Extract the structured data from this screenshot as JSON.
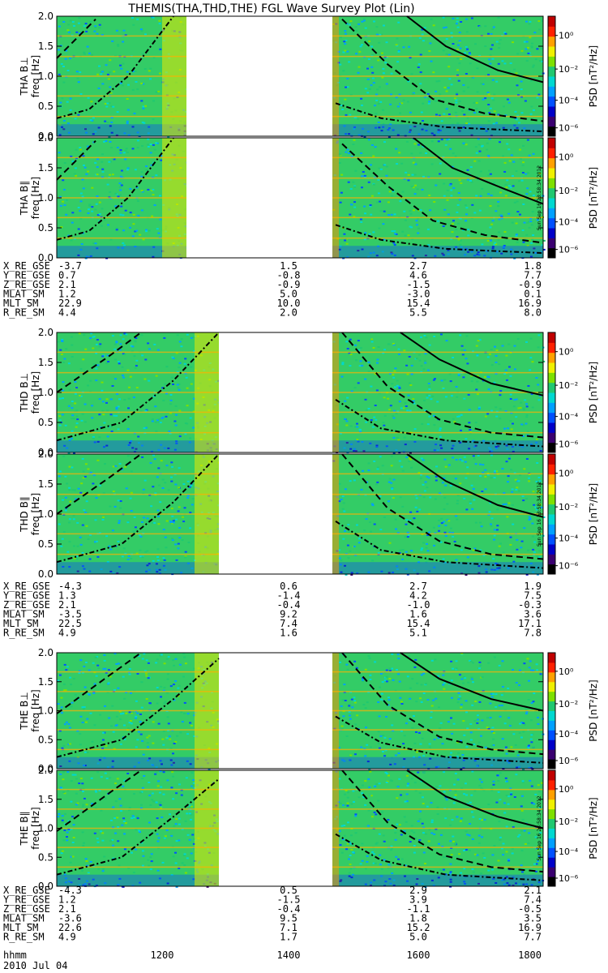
{
  "title": "THEMIS(THA,THD,THE) FGL Wave Survey Plot (Lin)",
  "date_label": "2010 Jul 04",
  "time_row_label": "hhmm",
  "time_ticks": [
    "1200",
    "1400",
    "1600",
    "1800"
  ],
  "stamp": "Sun Sep 16 23:58:34 2012",
  "colorbar": {
    "ticks": [
      "10⁰",
      "10⁻²",
      "10⁻⁴",
      "10⁻⁶"
    ],
    "label": "PSD [nT²/Hz]"
  },
  "yticks": [
    "0.0",
    "0.5",
    "1.0",
    "1.5",
    "2.0"
  ],
  "ylabel_freq": "freq [Hz]",
  "colors": {
    "background_field": "#33cc66",
    "colormap": [
      "#000000",
      "#3a0070",
      "#0000c8",
      "#0050ff",
      "#00a0ff",
      "#00d8d0",
      "#20c870",
      "#7ee000",
      "#f0f000",
      "#ffa000",
      "#ff2000",
      "#c00000"
    ]
  },
  "chart_data": [
    {
      "type": "heatmap",
      "panel": "THA B⊥",
      "probe_label": "THA B⊥",
      "ylabel": "freq [Hz]",
      "ylim": [
        0,
        2.0
      ],
      "xlim": [
        "10:30",
        "18:00"
      ],
      "colorscale": "log PSD 1e-6 to 1e1 nT²/Hz",
      "data_gap": [
        "12:30",
        "14:45"
      ],
      "curves": {
        "solid": [
          [
            15.9,
            2.0
          ],
          [
            16.5,
            1.5
          ],
          [
            17.3,
            1.1
          ],
          [
            18.0,
            0.9
          ]
        ],
        "dashed": [
          [
            10.5,
            1.3
          ],
          [
            11.1,
            1.95
          ],
          [
            14.9,
            1.95
          ],
          [
            15.6,
            1.2
          ],
          [
            16.3,
            0.62
          ],
          [
            17.1,
            0.38
          ],
          [
            18.0,
            0.25
          ]
        ],
        "dashdot": [
          [
            10.5,
            0.3
          ],
          [
            11.0,
            0.45
          ],
          [
            11.6,
            1.0
          ],
          [
            12.3,
            2.0
          ],
          [
            14.8,
            0.55
          ],
          [
            15.5,
            0.3
          ],
          [
            16.5,
            0.15
          ],
          [
            18.0,
            0.08
          ]
        ]
      }
    },
    {
      "type": "heatmap",
      "panel": "THA B∥",
      "probe_label": "THA B∥",
      "ylabel": "freq [Hz]",
      "ylim": [
        0,
        2.0
      ],
      "xlim": [
        "10:30",
        "18:00"
      ],
      "data_gap": [
        "12:30",
        "14:45"
      ],
      "curves": {
        "solid": [
          [
            16.0,
            2.0
          ],
          [
            16.6,
            1.5
          ],
          [
            17.4,
            1.15
          ],
          [
            18.0,
            0.9
          ]
        ],
        "dashed": [
          [
            10.5,
            1.3
          ],
          [
            11.1,
            1.95
          ],
          [
            14.9,
            1.9
          ],
          [
            15.6,
            1.2
          ],
          [
            16.3,
            0.62
          ],
          [
            17.1,
            0.38
          ],
          [
            18.0,
            0.25
          ]
        ],
        "dashdot": [
          [
            10.5,
            0.3
          ],
          [
            11.0,
            0.45
          ],
          [
            11.6,
            1.0
          ],
          [
            12.3,
            2.0
          ],
          [
            14.8,
            0.55
          ],
          [
            15.5,
            0.3
          ],
          [
            16.5,
            0.15
          ],
          [
            18.0,
            0.08
          ]
        ]
      }
    },
    {
      "type": "table",
      "panel": "THA orbit",
      "rows": [
        {
          "label": "X_RE_GSE",
          "values": [
            "-3.7",
            "1.5",
            "2.7",
            "1.8"
          ]
        },
        {
          "label": "Y_RE_GSE",
          "values": [
            "0.7",
            "-0.8",
            "4.6",
            "7.7"
          ]
        },
        {
          "label": "Z_RE_GSE",
          "values": [
            "2.1",
            "-0.9",
            "-1.5",
            "-0.9"
          ]
        },
        {
          "label": "MLAT_SM",
          "values": [
            "1.2",
            "5.0",
            "-3.0",
            "0.1"
          ]
        },
        {
          "label": "MLT_SM",
          "values": [
            "22.9",
            "10.0",
            "15.4",
            "16.9"
          ]
        },
        {
          "label": "R_RE_SM",
          "values": [
            "4.4",
            "2.0",
            "5.5",
            "8.0"
          ]
        }
      ]
    },
    {
      "type": "heatmap",
      "panel": "THD B⊥",
      "probe_label": "THD B⊥",
      "ylabel": "freq [Hz]",
      "ylim": [
        0,
        2.0
      ],
      "xlim": [
        "10:30",
        "18:00"
      ],
      "data_gap": [
        "13:00",
        "14:45"
      ],
      "curves": {
        "solid": [
          [
            15.8,
            2.0
          ],
          [
            16.4,
            1.55
          ],
          [
            17.2,
            1.15
          ],
          [
            18.0,
            0.95
          ]
        ],
        "dashed": [
          [
            10.5,
            1.0
          ],
          [
            11.3,
            1.6
          ],
          [
            11.8,
            2.0
          ],
          [
            14.9,
            2.0
          ],
          [
            15.6,
            1.1
          ],
          [
            16.4,
            0.55
          ],
          [
            17.2,
            0.33
          ],
          [
            18.0,
            0.25
          ]
        ],
        "dashdot": [
          [
            10.5,
            0.2
          ],
          [
            11.5,
            0.5
          ],
          [
            12.3,
            1.2
          ],
          [
            13.0,
            2.0
          ],
          [
            14.8,
            0.88
          ],
          [
            15.5,
            0.4
          ],
          [
            16.5,
            0.2
          ],
          [
            18.0,
            0.1
          ]
        ]
      }
    },
    {
      "type": "heatmap",
      "panel": "THD B∥",
      "probe_label": "THD B∥",
      "ylabel": "freq [Hz]",
      "ylim": [
        0,
        2.0
      ],
      "xlim": [
        "10:30",
        "18:00"
      ],
      "data_gap": [
        "13:00",
        "14:45"
      ],
      "curves": {
        "solid": [
          [
            15.9,
            2.0
          ],
          [
            16.5,
            1.55
          ],
          [
            17.3,
            1.15
          ],
          [
            18.0,
            0.95
          ]
        ],
        "dashed": [
          [
            10.5,
            1.0
          ],
          [
            11.3,
            1.6
          ],
          [
            11.8,
            2.0
          ],
          [
            14.9,
            2.0
          ],
          [
            15.6,
            1.1
          ],
          [
            16.4,
            0.55
          ],
          [
            17.2,
            0.33
          ],
          [
            18.0,
            0.25
          ]
        ],
        "dashdot": [
          [
            10.5,
            0.2
          ],
          [
            11.5,
            0.5
          ],
          [
            12.3,
            1.2
          ],
          [
            13.0,
            2.0
          ],
          [
            14.8,
            0.88
          ],
          [
            15.5,
            0.4
          ],
          [
            16.5,
            0.2
          ],
          [
            18.0,
            0.1
          ]
        ]
      }
    },
    {
      "type": "table",
      "panel": "THD orbit",
      "rows": [
        {
          "label": "X_RE_GSE",
          "values": [
            "-4.3",
            "0.6",
            "2.7",
            "1.9"
          ]
        },
        {
          "label": "Y_RE_GSE",
          "values": [
            "1.3",
            "-1.4",
            "4.2",
            "7.5"
          ]
        },
        {
          "label": "Z_RE_GSE",
          "values": [
            "2.1",
            "-0.4",
            "-1.0",
            "-0.3"
          ]
        },
        {
          "label": "MLAT_SM",
          "values": [
            "-3.5",
            "9.2",
            "1.6",
            "3.6"
          ]
        },
        {
          "label": "MLT_SM",
          "values": [
            "22.5",
            "7.4",
            "15.4",
            "17.1"
          ]
        },
        {
          "label": "R_RE_SM",
          "values": [
            "4.9",
            "1.6",
            "5.1",
            "7.8"
          ]
        }
      ]
    },
    {
      "type": "heatmap",
      "panel": "THE B⊥",
      "probe_label": "THE B⊥",
      "ylabel": "freq [Hz]",
      "ylim": [
        0,
        2.0
      ],
      "xlim": [
        "10:30",
        "18:00"
      ],
      "data_gap": [
        "13:00",
        "14:45"
      ],
      "curves": {
        "solid": [
          [
            15.8,
            2.0
          ],
          [
            16.4,
            1.55
          ],
          [
            17.2,
            1.2
          ],
          [
            18.0,
            1.0
          ]
        ],
        "dashed": [
          [
            10.5,
            0.95
          ],
          [
            11.3,
            1.6
          ],
          [
            11.8,
            2.0
          ],
          [
            14.9,
            2.0
          ],
          [
            15.6,
            1.1
          ],
          [
            16.4,
            0.55
          ],
          [
            17.2,
            0.33
          ],
          [
            18.0,
            0.25
          ]
        ],
        "dashdot": [
          [
            10.5,
            0.2
          ],
          [
            11.5,
            0.5
          ],
          [
            12.3,
            1.2
          ],
          [
            13.0,
            1.9
          ],
          [
            14.8,
            0.9
          ],
          [
            15.5,
            0.45
          ],
          [
            16.5,
            0.2
          ],
          [
            18.0,
            0.1
          ]
        ]
      }
    },
    {
      "type": "heatmap",
      "panel": "THE B∥",
      "probe_label": "THE B∥",
      "ylabel": "freq [Hz]",
      "ylim": [
        0,
        2.0
      ],
      "xlim": [
        "10:30",
        "18:00"
      ],
      "data_gap": [
        "13:00",
        "14:45"
      ],
      "curves": {
        "solid": [
          [
            15.9,
            2.0
          ],
          [
            16.5,
            1.55
          ],
          [
            17.3,
            1.2
          ],
          [
            18.0,
            1.0
          ]
        ],
        "dashed": [
          [
            10.5,
            0.95
          ],
          [
            11.3,
            1.6
          ],
          [
            11.8,
            2.0
          ],
          [
            14.9,
            2.0
          ],
          [
            15.6,
            1.1
          ],
          [
            16.4,
            0.55
          ],
          [
            17.2,
            0.33
          ],
          [
            18.0,
            0.25
          ]
        ],
        "dashdot": [
          [
            10.5,
            0.2
          ],
          [
            11.5,
            0.5
          ],
          [
            12.3,
            1.2
          ],
          [
            13.0,
            1.85
          ],
          [
            14.8,
            0.9
          ],
          [
            15.5,
            0.45
          ],
          [
            16.5,
            0.2
          ],
          [
            18.0,
            0.1
          ]
        ]
      }
    },
    {
      "type": "table",
      "panel": "THE orbit",
      "rows": [
        {
          "label": "X_RE_GSE",
          "values": [
            "-4.3",
            "0.5",
            "2.9",
            "2.1"
          ]
        },
        {
          "label": "Y_RE_GSE",
          "values": [
            "1.2",
            "-1.5",
            "3.9",
            "7.4"
          ]
        },
        {
          "label": "Z_RE_GSE",
          "values": [
            "2.1",
            "-0.4",
            "-1.1",
            "-0.5"
          ]
        },
        {
          "label": "MLAT_SM",
          "values": [
            "-3.6",
            "9.5",
            "1.8",
            "3.5"
          ]
        },
        {
          "label": "MLT_SM",
          "values": [
            "22.6",
            "7.1",
            "15.2",
            "16.9"
          ]
        },
        {
          "label": "R_RE_SM",
          "values": [
            "4.9",
            "1.7",
            "5.0",
            "7.7"
          ]
        }
      ]
    }
  ]
}
